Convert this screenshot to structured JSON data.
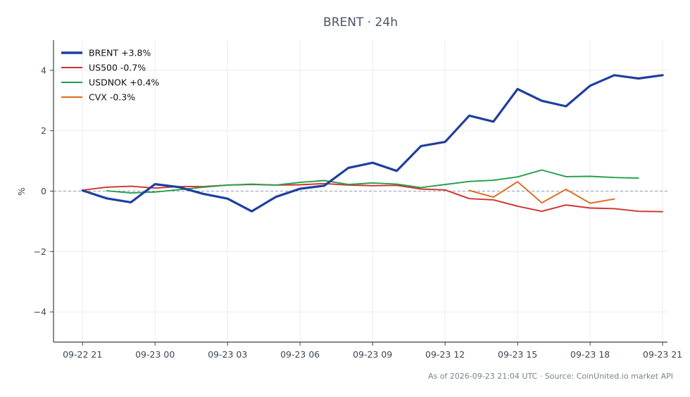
{
  "chart_data": {
    "type": "line",
    "title": "BRENT · 24h",
    "xlabel": "",
    "ylabel": "%",
    "ylim": [
      -5,
      5
    ],
    "yticks": [
      -4,
      -2,
      0,
      2,
      4
    ],
    "ytick_labels": [
      "−4",
      "−2",
      "0",
      "2",
      "4"
    ],
    "xlim": [
      -1.2,
      24.2
    ],
    "xticks": [
      0,
      3,
      6,
      9,
      12,
      15,
      18,
      21,
      24
    ],
    "xtick_labels": [
      "09-22 21",
      "09-23 00",
      "09-23 03",
      "09-23 06",
      "09-23 09",
      "09-23 12",
      "09-23 15",
      "09-23 18",
      "09-23 21"
    ],
    "grid": true,
    "zero_line": true,
    "legend_position": "top-left",
    "series": [
      {
        "name": "BRENT +3.8%",
        "color": "#1f3f9e",
        "x": [
          0,
          1,
          2,
          3,
          4,
          5,
          6,
          7,
          8,
          9,
          10,
          11,
          12,
          13,
          14,
          15,
          16,
          17,
          18,
          19,
          20,
          21,
          22,
          23,
          24
        ],
        "y": [
          0.02,
          -0.24,
          -0.37,
          0.23,
          0.13,
          -0.09,
          -0.25,
          -0.67,
          -0.19,
          0.08,
          0.18,
          0.77,
          0.94,
          0.67,
          1.49,
          1.63,
          2.5,
          2.3,
          3.38,
          2.99,
          2.81,
          3.49,
          3.84,
          3.73,
          3.84
        ]
      },
      {
        "name": "US500 -0.7%",
        "color": "#d0312d",
        "x": [
          0,
          1,
          2,
          3,
          4,
          5,
          6,
          7,
          8,
          9,
          10,
          11,
          12,
          13,
          14,
          15,
          16,
          17,
          18,
          19,
          20,
          21,
          22,
          23,
          24
        ],
        "y": [
          0.03,
          0.13,
          0.16,
          0.1,
          0.15,
          0.15,
          0.2,
          0.22,
          0.2,
          0.21,
          0.25,
          0.2,
          0.18,
          0.19,
          0.07,
          0.04,
          -0.25,
          -0.29,
          -0.5,
          -0.67,
          -0.46,
          -0.56,
          -0.58,
          -0.67,
          -0.68
        ]
      },
      {
        "name": "USDNOK +0.4%",
        "color": "#22a04b",
        "x": [
          1,
          2,
          3,
          4,
          5,
          6,
          7,
          8,
          9,
          10,
          11,
          12,
          13,
          14,
          16,
          17,
          18,
          19,
          20,
          21,
          22,
          23
        ],
        "y": [
          0.01,
          -0.06,
          -0.03,
          0.05,
          0.13,
          0.2,
          0.23,
          0.2,
          0.29,
          0.35,
          0.22,
          0.27,
          0.23,
          0.12,
          0.32,
          0.36,
          0.47,
          0.7,
          0.48,
          0.49,
          0.45,
          0.43
        ]
      },
      {
        "name": "CVX -0.3%",
        "color": "#e0661e",
        "x": [
          16,
          17,
          18,
          19,
          20,
          21,
          22
        ],
        "y": [
          0.02,
          -0.2,
          0.31,
          -0.39,
          0.06,
          -0.4,
          -0.26
        ]
      }
    ]
  },
  "footer": {
    "text": "As of 2026-09-23 21:04 UTC · Source: CoinUnited.io market API"
  }
}
